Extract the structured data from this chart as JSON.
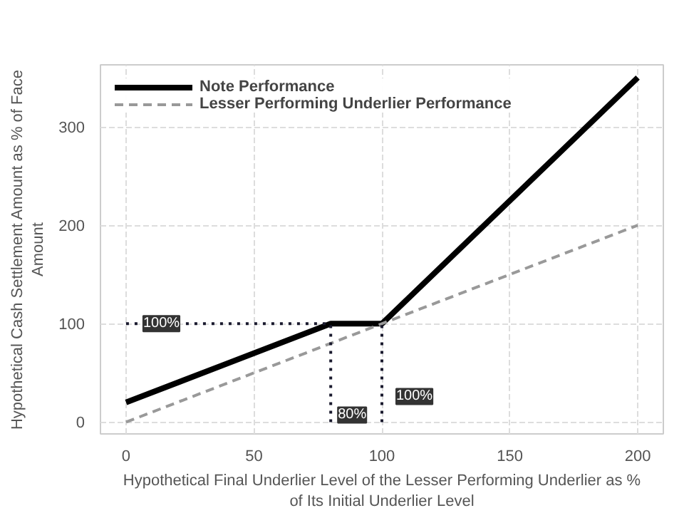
{
  "chart_data": {
    "type": "line",
    "xlabel": "Hypothetical Final Underlier Level of the Lesser Performing Underlier as % of Its Initial Underlier Level",
    "ylabel": "Hypothetical Cash Settlement Amount as % of Face Amount",
    "series": [
      {
        "name": "Note Performance",
        "color": "#000000",
        "x": [
          0,
          80,
          100,
          200
        ],
        "values": [
          20,
          100,
          100,
          350
        ],
        "line_style": "solid"
      },
      {
        "name": "Lesser Performing Underlier Performance",
        "color": "#999999",
        "x": [
          0,
          200
        ],
        "values": [
          0,
          200
        ],
        "line_style": "dashed"
      },
      {
        "color": "#1a1a2e",
        "x": [
          0,
          80
        ],
        "values": [
          100,
          100
        ],
        "line_style": "dotted"
      },
      {
        "color": "#1a1a2e",
        "x": [
          80,
          80
        ],
        "values": [
          0,
          100
        ],
        "line_style": "dotted"
      },
      {
        "color": "#1a1a2e",
        "x": [
          100,
          100
        ],
        "values": [
          0,
          100
        ],
        "line_style": "dotted"
      }
    ],
    "annotations": [
      {
        "text": "100%",
        "x": 0,
        "y": 100
      },
      {
        "text": "80%",
        "x": 80,
        "y": 0
      },
      {
        "text": "100%",
        "x": 100,
        "y": 0
      }
    ],
    "xlim": [
      -10,
      210
    ],
    "ylim": [
      -12,
      363
    ],
    "xticks": [
      0,
      50,
      100,
      150,
      200
    ],
    "yticks": [
      0,
      100,
      200,
      300
    ],
    "grid": true,
    "legend": "top left",
    "marker": "none"
  }
}
